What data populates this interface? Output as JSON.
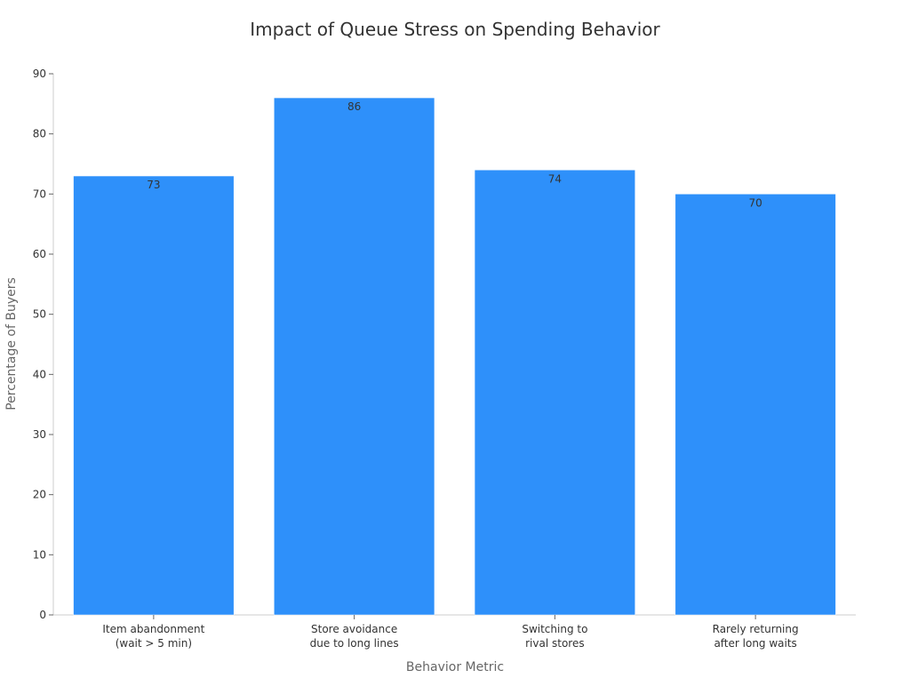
{
  "chart_data": {
    "type": "bar",
    "title": "Impact of Queue Stress on Spending Behavior",
    "xlabel": "Behavior Metric",
    "ylabel": "Percentage of Buyers",
    "categories": [
      [
        "Item abandonment",
        "(wait > 5 min)"
      ],
      [
        "Store avoidance",
        "due to long lines"
      ],
      [
        "Switching to",
        "rival stores"
      ],
      [
        "Rarely returning",
        "after long waits"
      ]
    ],
    "values": [
      73,
      86,
      74,
      70
    ],
    "ylim": [
      0,
      90
    ],
    "yticks": [
      0,
      10,
      20,
      30,
      40,
      50,
      60,
      70,
      80,
      90
    ],
    "bar_color": "#2e90fa",
    "grid": false,
    "data_labels": true
  }
}
